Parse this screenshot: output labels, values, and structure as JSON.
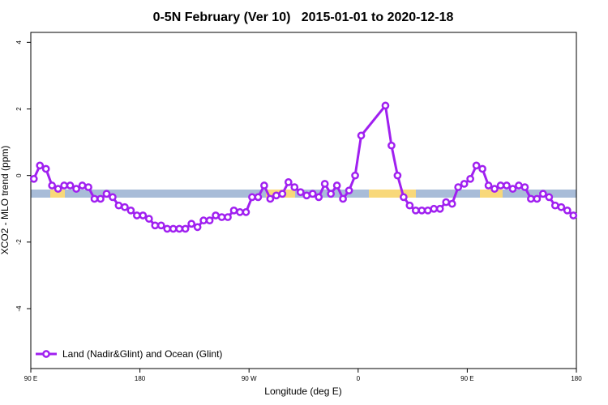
{
  "chart_data": {
    "type": "line",
    "title": "0-5N February (Ver 10)   2015-01-01 to 2020-12-18",
    "xlabel": "Longitude (deg E)",
    "ylabel": "XCO2 - MLO trend (ppm)",
    "x": [
      92.5,
      97.5,
      102.5,
      107.5,
      112.5,
      117.5,
      122.5,
      127.5,
      132.5,
      137.5,
      142.5,
      147.5,
      152.5,
      157.5,
      162.5,
      167.5,
      172.5,
      177.5,
      182.5,
      187.5,
      192.5,
      197.5,
      202.5,
      207.5,
      212.5,
      217.5,
      222.5,
      227.5,
      232.5,
      237.5,
      242.5,
      247.5,
      252.5,
      257.5,
      262.5,
      267.5,
      272.5,
      277.5,
      282.5,
      287.5,
      292.5,
      297.5,
      302.5,
      307.5,
      312.5,
      317.5,
      322.5,
      327.5,
      332.5,
      337.5,
      342.5,
      347.5,
      352.5,
      357.5,
      362.5,
      382.5,
      387.5,
      392.5,
      397.5,
      402.5,
      407.5,
      412.5,
      417.5,
      422.5,
      427.5,
      432.5,
      437.5,
      442.5,
      447.5,
      452.5,
      457.5,
      462.5,
      467.5,
      472.5,
      477.5,
      482.5,
      487.5,
      492.5,
      497.5,
      502.5,
      507.5,
      512.5,
      517.5,
      522.5,
      527.5,
      532.5,
      537.5
    ],
    "series": [
      {
        "name": "Land (Nadir&Glint) and Ocean (Glint)",
        "color": "#a020f0",
        "values": [
          -0.1,
          0.3,
          0.2,
          -0.3,
          -0.4,
          -0.3,
          -0.3,
          -0.4,
          -0.3,
          -0.35,
          -0.7,
          -0.7,
          -0.55,
          -0.65,
          -0.9,
          -0.95,
          -1.05,
          -1.2,
          -1.2,
          -1.3,
          -1.5,
          -1.5,
          -1.6,
          -1.6,
          -1.6,
          -1.6,
          -1.45,
          -1.55,
          -1.35,
          -1.35,
          -1.2,
          -1.25,
          -1.25,
          -1.05,
          -1.1,
          -1.1,
          -0.65,
          -0.65,
          -0.3,
          -0.7,
          -0.6,
          -0.55,
          -0.2,
          -0.35,
          -0.5,
          -0.6,
          -0.55,
          -0.65,
          -0.25,
          -0.55,
          -0.3,
          -0.7,
          -0.45,
          0.0,
          1.2,
          2.1,
          0.9,
          0.0,
          -0.65,
          -0.9,
          -1.05,
          -1.05,
          -1.05,
          -1.0,
          -1.0,
          -0.8,
          -0.85,
          -0.35,
          -0.25,
          -0.1,
          0.3,
          0.2,
          -0.3,
          -0.4,
          -0.3,
          -0.3,
          -0.4,
          -0.3,
          -0.35,
          -0.7,
          -0.7,
          -0.55,
          -0.65,
          -0.9,
          -0.95,
          -1.05,
          -1.2
        ]
      }
    ],
    "xlim": [
      90,
      540
    ],
    "xticks": [
      {
        "value": 90,
        "label": "90 E"
      },
      180,
      {
        "value": 270,
        "label": "90 W"
      },
      {
        "value": 360,
        "label": "0"
      },
      {
        "value": 450,
        "label": "90 E"
      },
      {
        "value": 540,
        "label": "180"
      }
    ],
    "ylim": [
      -5.8,
      4.3
    ],
    "yticks": [
      -4,
      -2,
      0,
      2,
      4
    ],
    "legend": "bottomleft"
  }
}
